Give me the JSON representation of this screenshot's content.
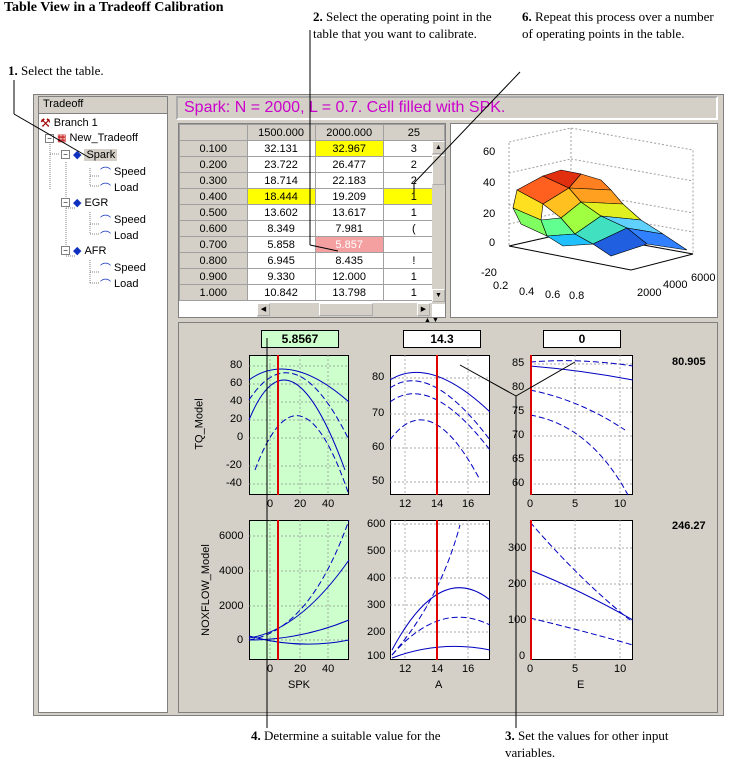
{
  "doc_title": "Table View in a Tradeoff Calibration",
  "callouts": {
    "c1": {
      "num": "1.",
      "text": " Select the table."
    },
    "c2": {
      "num": "2.",
      "text": " Select the operating point in the table that you want to calibrate."
    },
    "c6": {
      "num": "6.",
      "text": " Repeat this process over a number of operating points in the table."
    },
    "c4": {
      "num": "4.",
      "text": " Determine a suitable value for the"
    },
    "c3": {
      "num": "3.",
      "text": " Set the values for other input variables."
    }
  },
  "tree": {
    "header": "Tradeoff",
    "items": [
      {
        "label": "Branch 1"
      },
      {
        "label": "New_Tradeoff"
      },
      {
        "label": "Spark"
      },
      {
        "label": "Speed"
      },
      {
        "label": "Load"
      },
      {
        "label": "EGR"
      },
      {
        "label": "Speed"
      },
      {
        "label": "Load"
      },
      {
        "label": "AFR"
      },
      {
        "label": "Speed"
      },
      {
        "label": "Load"
      }
    ]
  },
  "status_title": "Spark: N = 2000, L = 0.7. Cell filled with SPK.",
  "table": {
    "col_headers": [
      "1500.000",
      "2000.000",
      "25"
    ],
    "rows": [
      {
        "row": "0.100",
        "cells": [
          "32.131",
          "32.967",
          "3"
        ]
      },
      {
        "row": "0.200",
        "cells": [
          "23.722",
          "26.477",
          "2"
        ]
      },
      {
        "row": "0.300",
        "cells": [
          "18.714",
          "22.183",
          "2"
        ]
      },
      {
        "row": "0.400",
        "cells": [
          "18.444",
          "19.209",
          "1"
        ]
      },
      {
        "row": "0.500",
        "cells": [
          "13.602",
          "13.617",
          "1"
        ]
      },
      {
        "row": "0.600",
        "cells": [
          "8.349",
          "7.981",
          "("
        ]
      },
      {
        "row": "0.700",
        "cells": [
          "5.858",
          "5.857",
          ""
        ]
      },
      {
        "row": "0.800",
        "cells": [
          "6.945",
          "8.435",
          "!"
        ]
      },
      {
        "row": "0.900",
        "cells": [
          "9.330",
          "12.000",
          "1"
        ]
      },
      {
        "row": "1.000",
        "cells": [
          "10.842",
          "13.798",
          "1"
        ]
      }
    ]
  },
  "surface": {
    "z_ticks": [
      "60",
      "40",
      "20",
      "0",
      "-20"
    ],
    "x_ticks": [
      "0.2",
      "0.4",
      "0.6",
      "0.8"
    ],
    "y_ticks": [
      "2000",
      "4000",
      "6000"
    ]
  },
  "inputs": {
    "spk": "5.8567",
    "a": "14.3",
    "e": "0"
  },
  "plots": {
    "tq_label": "TQ_Model",
    "nox_label": "NOXFLOW_Model",
    "tq_value": "80.905",
    "nox_value": "246.27",
    "tq_spk_yticks": [
      "80",
      "60",
      "40",
      "20",
      "0",
      "-20",
      "-40"
    ],
    "tq_a_yticks": [
      "80",
      "70",
      "60",
      "50"
    ],
    "tq_e_yticks": [
      "85",
      "80",
      "75",
      "70",
      "65",
      "60"
    ],
    "nox_spk_yticks": [
      "6000",
      "4000",
      "2000",
      "0"
    ],
    "nox_a_yticks": [
      "600",
      "500",
      "400",
      "300",
      "200",
      "100"
    ],
    "nox_e_yticks": [
      "300",
      "200",
      "100",
      "0"
    ],
    "spk_xticks": [
      "0",
      "20",
      "40"
    ],
    "a_xticks": [
      "12",
      "14",
      "16"
    ],
    "e_xticks": [
      "0",
      "5",
      "10"
    ],
    "x_labels": [
      "SPK",
      "A",
      "E"
    ]
  }
}
